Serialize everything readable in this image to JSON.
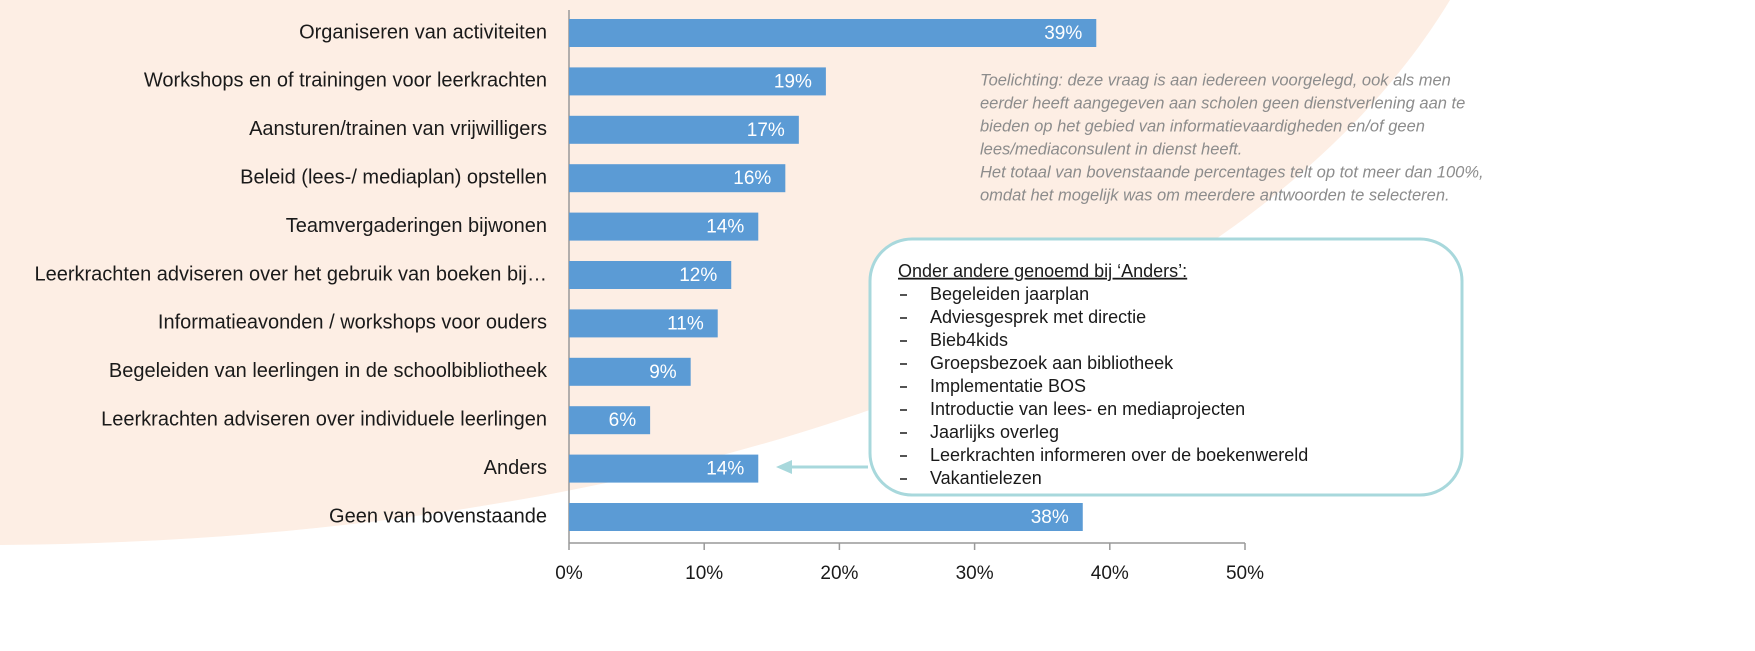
{
  "chart_data": {
    "type": "barh",
    "categories": [
      "Organiseren van activiteiten",
      "Workshops en of trainingen voor leerkrachten",
      "Aansturen/trainen van vrijwilligers",
      "Beleid (lees-/ mediaplan) opstellen",
      "Teamvergaderingen bijwonen",
      "Leerkrachten adviseren over het gebruik van boeken bij…",
      "Informatieavonden / workshops voor ouders",
      "Begeleiden van leerlingen in de schoolbibliotheek",
      "Leerkrachten adviseren over individuele leerlingen",
      "Anders",
      "Geen van bovenstaande"
    ],
    "values": [
      39,
      19,
      17,
      16,
      14,
      12,
      11,
      9,
      6,
      14,
      38
    ],
    "value_labels": [
      "39%",
      "19%",
      "17%",
      "16%",
      "14%",
      "12%",
      "11%",
      "9%",
      "6%",
      "14%",
      "38%"
    ],
    "color": "#5b9bd5",
    "xlim": [
      0,
      50
    ],
    "xticks": [
      {
        "value": 0,
        "label": "0%"
      },
      {
        "value": 10,
        "label": "10%"
      },
      {
        "value": 20,
        "label": "20%"
      },
      {
        "value": 30,
        "label": "30%"
      },
      {
        "value": 40,
        "label": "40%"
      },
      {
        "value": 50,
        "label": "50%"
      }
    ],
    "note": [
      "Toelichting: deze vraag is aan iedereen voorgelegd, ook als men",
      "eerder heeft aangegeven aan scholen geen dienstverlening aan te",
      "bieden op het gebied van informatievaardigheden en/of geen",
      "lees/mediaconsulent in dienst heeft.",
      "Het totaal van bovenstaande percentages telt op tot meer dan 100%,",
      "omdat het mogelijk was om meerdere antwoorden te selecteren."
    ],
    "anders_box": {
      "title": "Onder andere genoemd bij ‘Anders’:",
      "items": [
        "Begeleiden jaarplan",
        "Adviesgesprek met directie",
        "Bieb4kids",
        "Groepsbezoek aan bibliotheek",
        "Implementatie BOS",
        "Introductie van lees- en mediaprojecten",
        "Jaarlijks overleg",
        "Leerkrachten informeren over de boekenwereld",
        "Vakantielezen"
      ]
    }
  }
}
